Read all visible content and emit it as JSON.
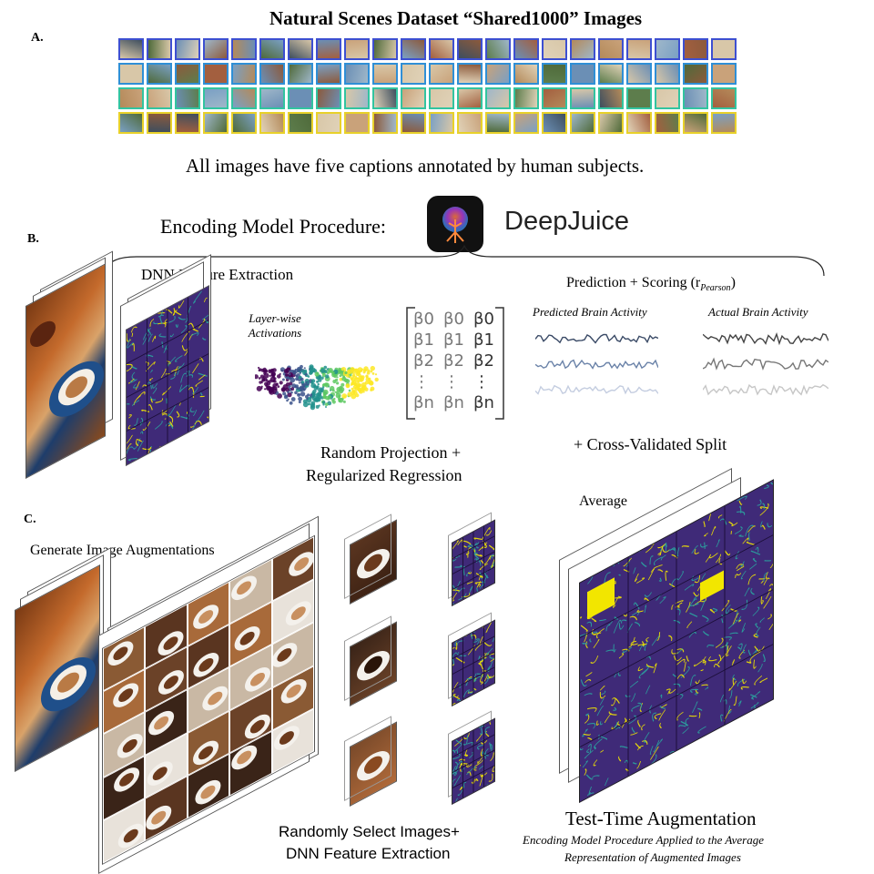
{
  "panelA": {
    "label": "A.",
    "title": "Natural Scenes Dataset “Shared1000” Images",
    "caption": "All images have five captions annotated by human subjects.",
    "row_colors": [
      "#3d4fd1",
      "#2f8fd6",
      "#32c4a0",
      "#e8d12a"
    ]
  },
  "panelB": {
    "label": "B.",
    "title": "Encoding Model Procedure:",
    "brand": "DeepJuice",
    "dnn_feature_extraction": "DNN Feature Extraction",
    "layerwise": [
      "Layer-wise",
      "Activations"
    ],
    "regression_line1": "Random Projection +",
    "regression_line2": "Regularized Regression",
    "scoring": "Prediction + Scoring (r",
    "scoring_sub": "Pearson",
    "scoring_close": ")",
    "predicted": "Predicted Brain Activity",
    "actual": "Actual Brain Activity",
    "crossval": "+ Cross-Validated Split",
    "betas": [
      [
        "β0",
        "β0",
        "β0"
      ],
      [
        "β1",
        "β1",
        "β1"
      ],
      [
        "β2",
        "β2",
        "β2"
      ],
      [
        "⋮",
        "⋮",
        "⋮"
      ],
      [
        "βn",
        "βn",
        "βn"
      ]
    ]
  },
  "panelC": {
    "label": "C.",
    "generate": "Generate Image Augmentations",
    "average": "Average",
    "select_line1": "Randomly Select Images+",
    "select_line2": "DNN Feature Extraction",
    "tta": "Test-Time Augmentation",
    "tta_sub1": "Encoding Model Procedure Applied to the  Average",
    "tta_sub2": "Representation of Augmented Images"
  },
  "colors": {
    "feature_map_bg": "#3b1d6b",
    "feature_map_accent": "#f2e600",
    "viridis": [
      "#440154",
      "#3b528b",
      "#21918c",
      "#5ec962",
      "#fde725"
    ]
  }
}
